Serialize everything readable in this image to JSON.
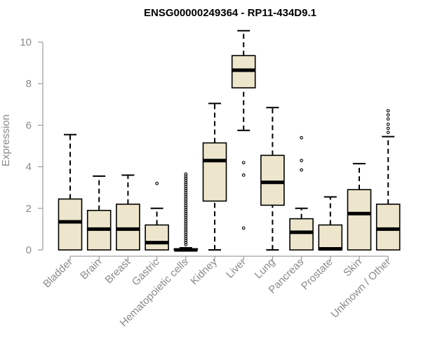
{
  "chart_data": {
    "type": "box",
    "title": "ENSG00000249364 - RP11-434D9.1",
    "xlabel": "",
    "ylabel": "Expression",
    "ylim": [
      0,
      10.5
    ],
    "yticks": [
      0,
      2,
      4,
      6,
      8,
      10
    ],
    "grid": false,
    "legend": "none",
    "colors": {
      "box_fill": "#EDE6CC",
      "outline": "#000000",
      "axis_text": "#8a8a8a"
    },
    "categories": [
      "Bladder",
      "Brain",
      "Breast",
      "Gastric",
      "Hematopoietic cells",
      "Kidney",
      "Liver",
      "Lung",
      "Pancreas",
      "Prostate",
      "Skin",
      "Unknown / Other"
    ],
    "boxes": [
      {
        "low": 0,
        "q1": 0,
        "median": 1.35,
        "q3": 2.45,
        "high": 5.55,
        "outliers": []
      },
      {
        "low": 0,
        "q1": 0,
        "median": 1.0,
        "q3": 1.9,
        "high": 3.55,
        "outliers": []
      },
      {
        "low": 0,
        "q1": 0,
        "median": 1.0,
        "q3": 2.2,
        "high": 3.6,
        "outliers": []
      },
      {
        "low": 0,
        "q1": 0,
        "median": 0.35,
        "q3": 1.2,
        "high": 2.0,
        "outliers": [
          3.2
        ]
      },
      {
        "low": 0,
        "q1": 0,
        "median": 0,
        "q3": 0.05,
        "high": 0.1,
        "outliers": [
          0.25,
          0.35,
          0.45,
          0.55,
          0.65,
          0.75,
          0.85,
          0.95,
          1.05,
          1.15,
          1.25,
          1.35,
          1.45,
          1.55,
          1.65,
          1.75,
          1.85,
          1.95,
          2.05,
          2.15,
          2.25,
          2.35,
          2.45,
          2.55,
          2.65,
          2.75,
          2.85,
          2.95,
          3.05,
          3.15,
          3.25,
          3.35,
          3.45,
          3.55,
          3.65
        ]
      },
      {
        "low": 0,
        "q1": 2.35,
        "median": 4.3,
        "q3": 5.15,
        "high": 7.05,
        "outliers": []
      },
      {
        "low": 5.75,
        "q1": 7.8,
        "median": 8.65,
        "q3": 9.35,
        "high": 10.55,
        "outliers": [
          4.2,
          3.6,
          1.05
        ]
      },
      {
        "low": 0,
        "q1": 2.15,
        "median": 3.25,
        "q3": 4.55,
        "high": 6.85,
        "outliers": []
      },
      {
        "low": 0,
        "q1": 0,
        "median": 0.85,
        "q3": 1.5,
        "high": 2.0,
        "outliers": [
          5.4,
          4.3,
          3.85
        ]
      },
      {
        "low": 0,
        "q1": 0,
        "median": 0.05,
        "q3": 1.2,
        "high": 2.55,
        "outliers": []
      },
      {
        "low": 0,
        "q1": 0,
        "median": 1.75,
        "q3": 2.9,
        "high": 4.15,
        "outliers": []
      },
      {
        "low": 0,
        "q1": 0,
        "median": 1.0,
        "q3": 2.2,
        "high": 5.45,
        "outliers": [
          5.65,
          5.85,
          6.05,
          6.3,
          6.5,
          6.7
        ]
      }
    ]
  }
}
